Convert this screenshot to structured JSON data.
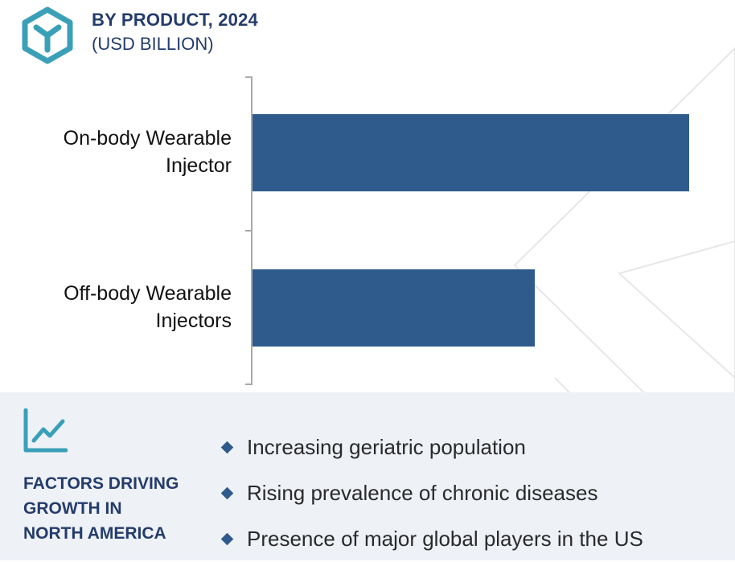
{
  "header": {
    "title": "BY PRODUCT, 2024",
    "subtitle": "(USD BILLION)",
    "logo_icon": "cube-logo-icon"
  },
  "chart_data": {
    "type": "bar",
    "orientation": "horizontal",
    "categories": [
      "On-body Wearable Injector",
      "Off-body Wearable Injectors"
    ],
    "category_lines": [
      [
        "On-body Wearable",
        "Injector"
      ],
      [
        "Off-body Wearable",
        "Injectors"
      ]
    ],
    "values": [
      1.0,
      0.647
    ],
    "value_note": "relative bar lengths; no values printed",
    "xlim": [
      0,
      1.0
    ],
    "grid": false,
    "legend": "none",
    "bar_color": "#2e5b8c"
  },
  "footer": {
    "icon": "trend-chart-icon",
    "title_lines": [
      "FACTORS DRIVING",
      "GROWTH IN",
      "NORTH AMERICA"
    ],
    "factors": [
      "Increasing geriatric population",
      "Rising prevalence of chronic diseases",
      "Presence of major global players in the US"
    ],
    "bullet_icon": "diamond-bullet-icon"
  },
  "colors": {
    "title": "#243c6b",
    "accent": "#3aa0b8",
    "bar": "#2e5b8c",
    "footer_bg": "#eef1f6"
  }
}
